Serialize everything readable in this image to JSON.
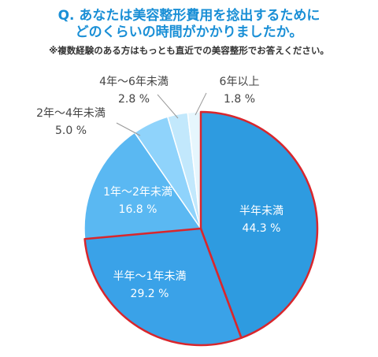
{
  "question": {
    "line1": "Q. あなたは美容整形費用を捻出するために",
    "line2": "どのくらいの時間がかかりましたか。"
  },
  "note": "※複数経験のある方はもっとも直近での美容整形でお答えください。",
  "chart_data": {
    "type": "pie",
    "unit": "%",
    "slices": [
      {
        "label": "半年未満",
        "value": 44.3,
        "display": "44.3 %",
        "color": "#2e9be0",
        "text_color": "#ffffff",
        "highlight": true
      },
      {
        "label": "半年～1年未満",
        "value": 29.2,
        "display": "29.2 %",
        "color": "#3aa2e8",
        "text_color": "#ffffff",
        "highlight": true
      },
      {
        "label": "1年～2年未満",
        "value": 16.8,
        "display": "16.8 %",
        "color": "#5ab8f2",
        "text_color": "#ffffff",
        "highlight": false
      },
      {
        "label": "2年～4年未満",
        "value": 5.0,
        "display": "5.0 %",
        "color": "#8fd3fb",
        "text_color": "#444444",
        "highlight": false
      },
      {
        "label": "4年～6年未満",
        "value": 2.8,
        "display": "2.8 %",
        "color": "#c2e8fc",
        "text_color": "#444444",
        "highlight": false
      },
      {
        "label": "6年以上",
        "value": 1.8,
        "display": "1.8 %",
        "color": "#e6f6fd",
        "text_color": "#444444",
        "highlight": false
      }
    ],
    "highlight_color": "#d9262c",
    "start": "12 o'clock",
    "direction": "clockwise"
  }
}
